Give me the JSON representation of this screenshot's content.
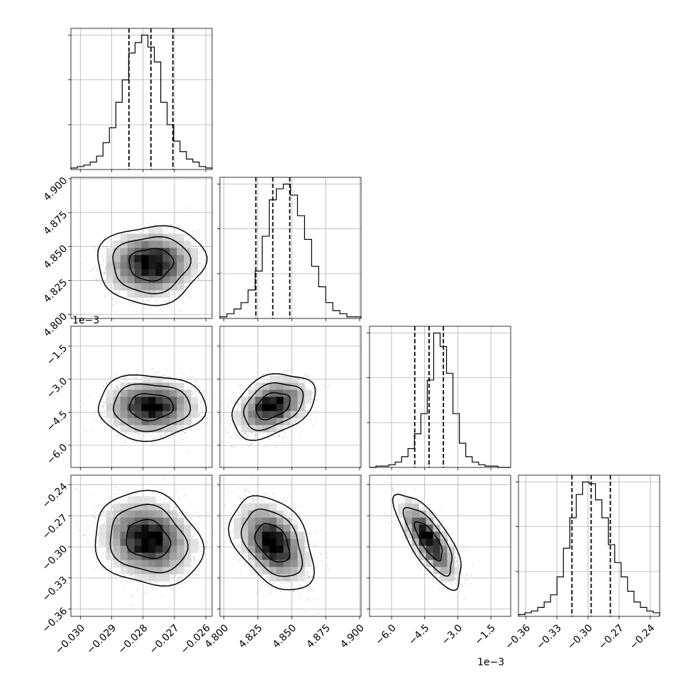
{
  "chart_data": {
    "type": "corner",
    "title": "",
    "grid": true,
    "parameters": [
      {
        "index": 0,
        "range": [
          -0.0303,
          -0.0258
        ],
        "ticks": [
          "−0.030",
          "−0.029",
          "−0.028",
          "−0.027",
          "−0.026"
        ],
        "tick_values": [
          -0.03,
          -0.029,
          -0.028,
          -0.027,
          -0.026
        ],
        "quantiles": [
          -0.02845,
          -0.02775,
          -0.02705
        ],
        "histogram": [
          1,
          2,
          3,
          5,
          9,
          18,
          28,
          45,
          60,
          78,
          85,
          90,
          82,
          72,
          45,
          30,
          19,
          12,
          7,
          5,
          2,
          1
        ]
      },
      {
        "index": 1,
        "range": [
          4.797,
          4.901
        ],
        "ticks": [
          "4.800",
          "4.825",
          "4.850",
          "4.875",
          "4.900"
        ],
        "tick_values": [
          4.8,
          4.825,
          4.85,
          4.875,
          4.9
        ],
        "quantiles": [
          4.8235,
          4.836,
          4.8485
        ],
        "histogram": [
          1,
          3,
          6,
          10,
          18,
          30,
          52,
          75,
          82,
          85,
          78,
          65,
          50,
          33,
          20,
          10,
          5,
          3,
          1,
          1
        ]
      },
      {
        "index": 2,
        "range": [
          -7.0,
          -0.6
        ],
        "ticks": [
          "−6.0",
          "−4.5",
          "−3.0",
          "−1.5"
        ],
        "tick_values": [
          -6.0,
          -4.5,
          -3.0,
          -1.5
        ],
        "offset_label": "1e−3",
        "quantiles": [
          -4.95,
          -4.3,
          -3.65
        ],
        "histogram": [
          0,
          1,
          1,
          2,
          4,
          8,
          14,
          25,
          40,
          65,
          100,
          90,
          70,
          40,
          18,
          8,
          4,
          2,
          1,
          1,
          0,
          0
        ]
      },
      {
        "index": 3,
        "range": [
          -0.367,
          -0.231
        ],
        "ticks": [
          "−0.36",
          "−0.33",
          "−0.30",
          "−0.27",
          "−0.24"
        ],
        "tick_values": [
          -0.36,
          -0.33,
          -0.3,
          -0.27,
          -0.24
        ],
        "quantiles": [
          -0.3155,
          -0.297,
          -0.2785
        ],
        "histogram": [
          1,
          2,
          3,
          5,
          8,
          12,
          22,
          38,
          55,
          68,
          75,
          74,
          65,
          55,
          40,
          30,
          22,
          14,
          8,
          5,
          3,
          2
        ]
      }
    ],
    "pairs": [
      {
        "row": 1,
        "col": 0,
        "correlation": 0.05,
        "center": [
          -0.02775,
          4.837
        ],
        "spread": [
          0.0007,
          0.0118
        ]
      },
      {
        "row": 2,
        "col": 0,
        "correlation": 0.0,
        "center": [
          -0.02775,
          -4.25
        ],
        "spread": [
          0.0007,
          0.6
        ]
      },
      {
        "row": 2,
        "col": 1,
        "correlation": 0.35,
        "center": [
          4.836,
          -4.2
        ],
        "spread": [
          0.0125,
          0.6
        ]
      },
      {
        "row": 3,
        "col": 0,
        "correlation": -0.15,
        "center": [
          -0.02785,
          -0.293
        ],
        "spread": [
          0.0007,
          0.0185
        ]
      },
      {
        "row": 3,
        "col": 1,
        "correlation": -0.4,
        "center": [
          4.836,
          -0.296
        ],
        "spread": [
          0.0125,
          0.0185
        ]
      },
      {
        "row": 3,
        "col": 2,
        "correlation": -0.75,
        "center": [
          -4.3,
          -0.294
        ],
        "spread": [
          0.62,
          0.0185
        ]
      }
    ]
  }
}
